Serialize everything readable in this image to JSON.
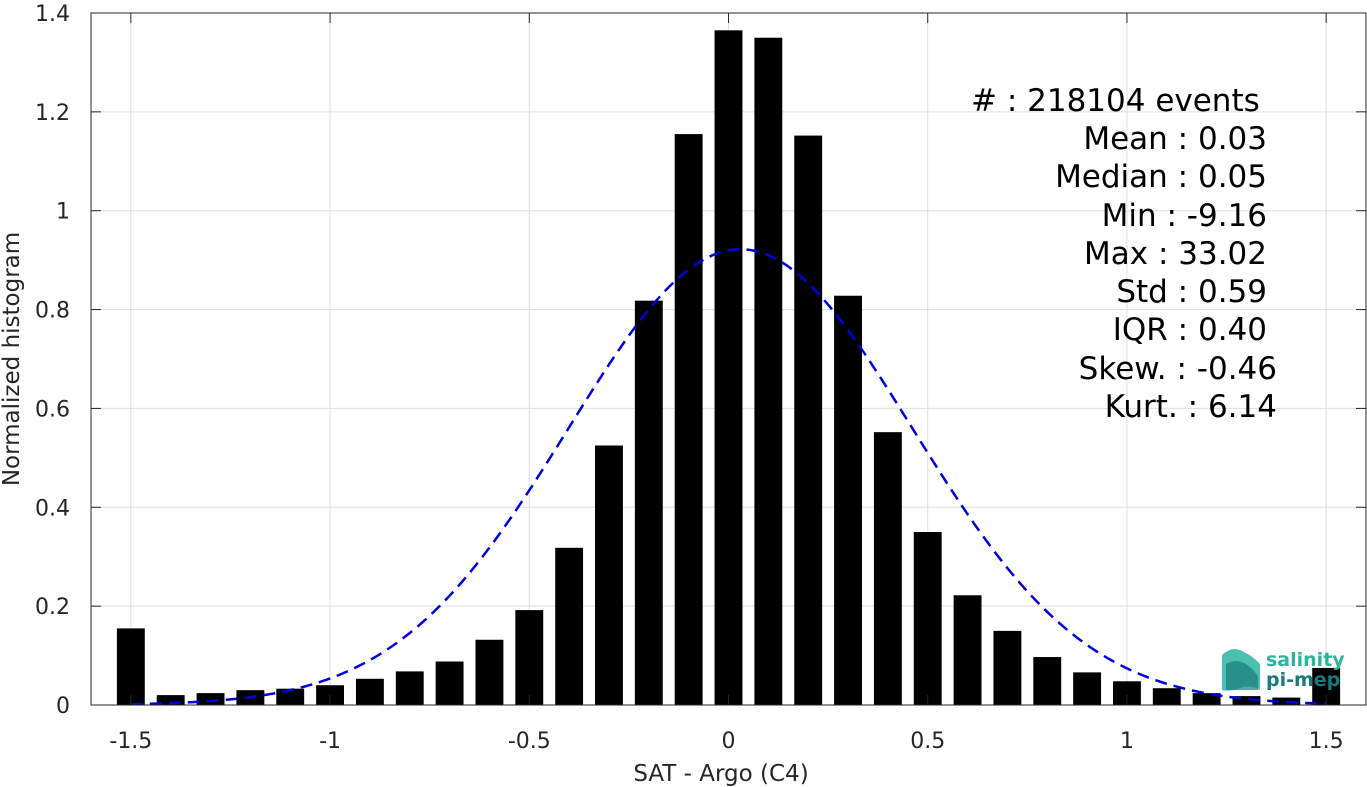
{
  "chart_data": {
    "type": "bar",
    "title": "",
    "xlabel": "SAT - Argo (C4)",
    "ylabel": "Normalized histogram",
    "xlim": [
      -1.6,
      1.6
    ],
    "ylim": [
      0,
      1.4
    ],
    "xticks": [
      -1.5,
      -1,
      -0.5,
      0,
      0.5,
      1,
      1.5
    ],
    "xtick_labels": [
      "-1.5",
      "-1",
      "-0.5",
      "0",
      "0.5",
      "1",
      "1.5"
    ],
    "yticks": [
      0,
      0.2,
      0.4,
      0.6,
      0.8,
      1.0,
      1.2,
      1.4
    ],
    "ytick_labels": [
      "0",
      "0.2",
      "0.4",
      "0.6",
      "0.8",
      "1",
      "1.2",
      "1.4"
    ],
    "grid": true,
    "bar_width": 0.07,
    "bars": {
      "x": [
        -1.5,
        -1.4,
        -1.3,
        -1.2,
        -1.1,
        -1.0,
        -0.9,
        -0.8,
        -0.7,
        -0.6,
        -0.5,
        -0.4,
        -0.3,
        -0.2,
        -0.1,
        0.0,
        0.1,
        0.2,
        0.3,
        0.4,
        0.5,
        0.6,
        0.7,
        0.8,
        0.9,
        1.0,
        1.1,
        1.2,
        1.3,
        1.4,
        1.5
      ],
      "values": [
        0.155,
        0.02,
        0.024,
        0.03,
        0.033,
        0.04,
        0.053,
        0.068,
        0.088,
        0.132,
        0.192,
        0.318,
        0.525,
        0.818,
        1.155,
        1.365,
        1.35,
        1.152,
        0.828,
        0.552,
        0.35,
        0.222,
        0.15,
        0.097,
        0.066,
        0.048,
        0.034,
        0.024,
        0.018,
        0.015,
        0.075
      ],
      "color": "#000000"
    },
    "series": [
      {
        "type": "line",
        "style": "dashed",
        "color": "#0000dd",
        "mean": 0.03,
        "std": 0.432,
        "peak": 0.922,
        "x_range": [
          -1.5,
          1.5
        ]
      }
    ],
    "annotations": [
      "#  : 218104 events",
      "Mean : 0.03",
      "Median : 0.05",
      "Min : -9.16",
      "Max : 33.02",
      "Std : 0.59",
      "IQR : 0.40",
      "Skew. : -0.46",
      "Kurt. : 6.14"
    ]
  },
  "logo": {
    "line1": "salinity",
    "line2": "pi-mep",
    "color1": "#2bb5a0",
    "color2": "#1a7a7a"
  }
}
